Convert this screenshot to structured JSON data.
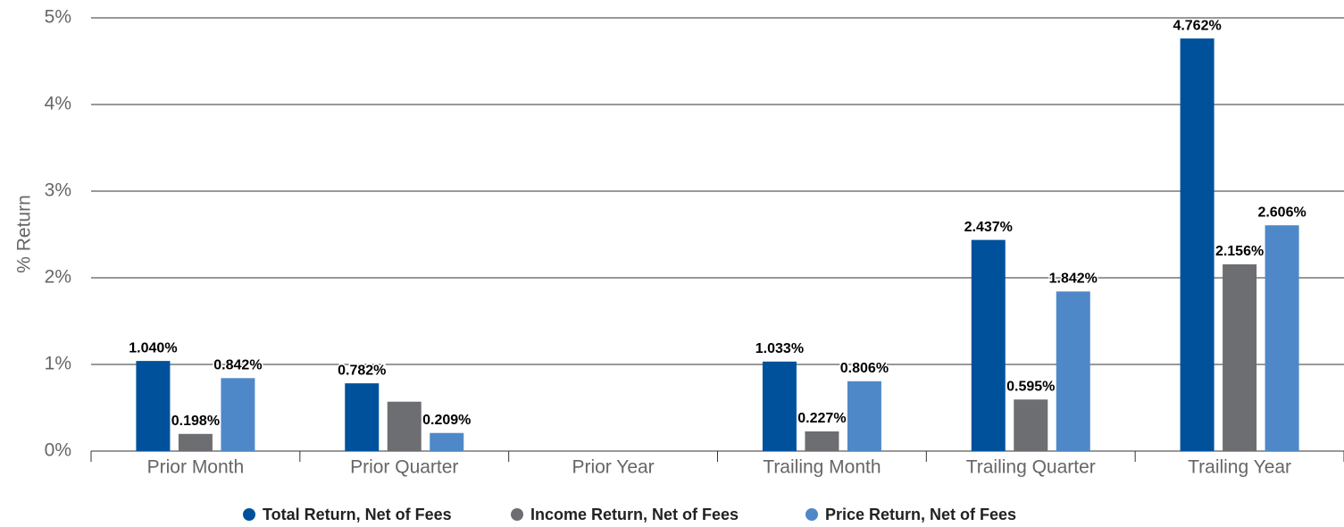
{
  "chart_data": {
    "type": "bar",
    "y_label": "% Return",
    "categories": [
      "Prior Month",
      "Prior Quarter",
      "Prior Year",
      "Trailing Month",
      "Trailing Quarter",
      "Trailing Year"
    ],
    "series": [
      {
        "name": "Total Return, Net of Fees",
        "color": "#00519b",
        "values": [
          1.04,
          0.782,
          null,
          1.033,
          2.437,
          4.762
        ],
        "value_labels": [
          "1.040%",
          "0.782%",
          null,
          "1.033%",
          "2.437%",
          "4.762%"
        ]
      },
      {
        "name": "Income Return, Net of Fees",
        "color": "#6d6e71",
        "values": [
          0.198,
          0.57,
          null,
          0.227,
          0.595,
          2.156
        ],
        "value_labels": [
          "0.198%",
          null,
          null,
          "0.227%",
          "0.595%",
          "2.156%"
        ]
      },
      {
        "name": "Price Return, Net of Fees",
        "color": "#4f88c8",
        "values": [
          0.842,
          0.209,
          null,
          0.806,
          1.842,
          2.606
        ],
        "value_labels": [
          "0.842%",
          "0.209%",
          null,
          "0.806%",
          "1.842%",
          "2.606%"
        ]
      }
    ],
    "ylim": [
      0,
      5
    ],
    "yticks": [
      {
        "value": 0,
        "label": "0%"
      },
      {
        "value": 1,
        "label": "1%"
      },
      {
        "value": 2,
        "label": "2%"
      },
      {
        "value": 3,
        "label": "3%"
      },
      {
        "value": 4,
        "label": "4%"
      },
      {
        "value": 5,
        "label": "5%"
      }
    ],
    "grid": true,
    "legend": "bottom"
  }
}
